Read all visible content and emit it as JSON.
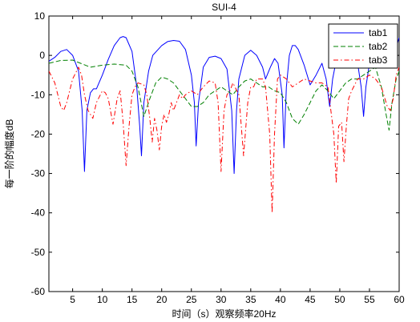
{
  "chart_data": {
    "type": "line",
    "title": "SUI-4",
    "xlabel": "时间（s）观察频率20Hz",
    "ylabel": "每一阶的幅度dB",
    "xlim": [
      1,
      60
    ],
    "ylim": [
      -60,
      10
    ],
    "xticks": [
      5,
      10,
      15,
      20,
      25,
      30,
      35,
      40,
      45,
      50,
      55,
      60
    ],
    "yticks": [
      10,
      0,
      -10,
      -20,
      -30,
      -40,
      -50,
      -60
    ],
    "grid": false,
    "legend_position": "top-right",
    "series": [
      {
        "name": "tab1",
        "color": "#0000ff",
        "style": "solid",
        "points": [
          [
            1,
            -1.5
          ],
          [
            2,
            -0.5
          ],
          [
            3,
            1
          ],
          [
            4,
            1.5
          ],
          [
            5,
            0
          ],
          [
            6,
            -4
          ],
          [
            6.6,
            -14
          ],
          [
            7,
            -29.5
          ],
          [
            7.4,
            -14
          ],
          [
            8,
            -9.5
          ],
          [
            8.5,
            -8.5
          ],
          [
            9,
            -8.5
          ],
          [
            10,
            -5
          ],
          [
            11,
            -1
          ],
          [
            12,
            2.5
          ],
          [
            13,
            4.5
          ],
          [
            13.5,
            4.8
          ],
          [
            14,
            4.5
          ],
          [
            15,
            1
          ],
          [
            15.8,
            -8
          ],
          [
            16.3,
            -18
          ],
          [
            16.6,
            -25.5
          ],
          [
            17,
            -12
          ],
          [
            17.8,
            -4
          ],
          [
            18.5,
            0
          ],
          [
            20,
            2.5
          ],
          [
            21,
            3.5
          ],
          [
            22,
            3.8
          ],
          [
            23,
            3.6
          ],
          [
            24,
            1.5
          ],
          [
            25,
            -5
          ],
          [
            25.5,
            -12
          ],
          [
            25.8,
            -23
          ],
          [
            26.2,
            -12
          ],
          [
            27,
            -3
          ],
          [
            28,
            -0.5
          ],
          [
            29,
            -0.2
          ],
          [
            30,
            -0.8
          ],
          [
            31,
            -3.5
          ],
          [
            31.8,
            -14
          ],
          [
            32.2,
            -30
          ],
          [
            32.6,
            -14
          ],
          [
            33,
            -6
          ],
          [
            34,
            0
          ],
          [
            35,
            1.3
          ],
          [
            36,
            0
          ],
          [
            37,
            -3
          ],
          [
            37.5,
            -6
          ],
          [
            38.3,
            -3
          ],
          [
            39,
            -0.8
          ],
          [
            39.6,
            -2
          ],
          [
            40.3,
            -10
          ],
          [
            40.6,
            -23.5
          ],
          [
            41,
            -8
          ],
          [
            41.5,
            0
          ],
          [
            42,
            2.5
          ],
          [
            42.5,
            2.5
          ],
          [
            43,
            1.5
          ],
          [
            44,
            -2.5
          ],
          [
            45,
            -7.5
          ],
          [
            46,
            -5
          ],
          [
            47,
            -2
          ],
          [
            47.7,
            -6
          ],
          [
            48.3,
            -13
          ],
          [
            48.8,
            -6
          ],
          [
            49.5,
            -0.5
          ],
          [
            50,
            0
          ],
          [
            51,
            0
          ],
          [
            52,
            -0.5
          ],
          [
            53,
            -2
          ],
          [
            53.6,
            -8
          ],
          [
            54,
            -15.5
          ],
          [
            54.4,
            -8
          ],
          [
            55,
            -2
          ],
          [
            56,
            0
          ],
          [
            57,
            0.5
          ],
          [
            58,
            0.3
          ],
          [
            58.8,
            -1
          ],
          [
            59.5,
            2
          ],
          [
            60,
            4.5
          ]
        ]
      },
      {
        "name": "tab2",
        "color": "#008000",
        "style": "dashed",
        "points": [
          [
            1,
            -2
          ],
          [
            3,
            -1.3
          ],
          [
            5,
            -1.2
          ],
          [
            6,
            -1.8
          ],
          [
            8,
            -3
          ],
          [
            10,
            -2.5
          ],
          [
            12,
            -2.2
          ],
          [
            14,
            -2.5
          ],
          [
            15,
            -4
          ],
          [
            16,
            -8
          ],
          [
            17,
            -15.5
          ],
          [
            18,
            -11
          ],
          [
            19,
            -7
          ],
          [
            20,
            -5.5
          ],
          [
            21,
            -6
          ],
          [
            22,
            -7
          ],
          [
            23,
            -9
          ],
          [
            24,
            -11
          ],
          [
            25,
            -13
          ],
          [
            26,
            -13
          ],
          [
            27,
            -12
          ],
          [
            28,
            -10
          ],
          [
            29,
            -9
          ],
          [
            30,
            -8
          ],
          [
            31,
            -9
          ],
          [
            32,
            -10
          ],
          [
            33,
            -8
          ],
          [
            34,
            -6.5
          ],
          [
            35,
            -6
          ],
          [
            36,
            -7
          ],
          [
            37,
            -8
          ],
          [
            38,
            -8
          ],
          [
            39,
            -9
          ],
          [
            40,
            -9.5
          ],
          [
            41,
            -12
          ],
          [
            42,
            -16
          ],
          [
            43,
            -17.5
          ],
          [
            44,
            -15
          ],
          [
            45,
            -12
          ],
          [
            46,
            -9
          ],
          [
            47,
            -7.5
          ],
          [
            48,
            -9
          ],
          [
            49,
            -11
          ],
          [
            50,
            -9
          ],
          [
            51,
            -7
          ],
          [
            52,
            -6
          ],
          [
            53,
            -6
          ],
          [
            54,
            -5
          ],
          [
            55,
            -4
          ],
          [
            56,
            -3
          ],
          [
            57,
            -8
          ],
          [
            57.8,
            -15
          ],
          [
            58.3,
            -19
          ],
          [
            58.8,
            -12
          ],
          [
            59.5,
            -6
          ],
          [
            60,
            -4
          ]
        ]
      },
      {
        "name": "tab3",
        "color": "#ff0000",
        "style": "dashdot",
        "points": [
          [
            1,
            -4
          ],
          [
            2,
            -7
          ],
          [
            3,
            -13
          ],
          [
            3.5,
            -14
          ],
          [
            4,
            -12
          ],
          [
            5,
            -6
          ],
          [
            6,
            -3
          ],
          [
            6.5,
            -5
          ],
          [
            7,
            -10
          ],
          [
            7.6,
            -14
          ],
          [
            8.4,
            -16
          ],
          [
            9,
            -12
          ],
          [
            10,
            -9
          ],
          [
            10.5,
            -9.5
          ],
          [
            11,
            -11
          ],
          [
            11.8,
            -17.5
          ],
          [
            12.5,
            -11
          ],
          [
            13,
            -9
          ],
          [
            13.5,
            -17
          ],
          [
            14,
            -28
          ],
          [
            14.5,
            -18
          ],
          [
            15,
            -10
          ],
          [
            15.5,
            -8
          ],
          [
            16,
            -7
          ],
          [
            17,
            -7.5
          ],
          [
            17.5,
            -10
          ],
          [
            18,
            -16
          ],
          [
            18.4,
            -22
          ],
          [
            18.8,
            -16
          ],
          [
            19.2,
            -19
          ],
          [
            19.6,
            -24
          ],
          [
            20,
            -18
          ],
          [
            20.4,
            -15
          ],
          [
            20.8,
            -17
          ],
          [
            21.2,
            -15
          ],
          [
            21.6,
            -12
          ],
          [
            22,
            -14
          ],
          [
            22.5,
            -12
          ],
          [
            23,
            -10
          ],
          [
            23.5,
            -11
          ],
          [
            24,
            -10
          ],
          [
            25,
            -9
          ],
          [
            26,
            -10
          ],
          [
            27,
            -8
          ],
          [
            28,
            -6.5
          ],
          [
            29,
            -7
          ],
          [
            29.5,
            -12
          ],
          [
            30,
            -29.5
          ],
          [
            30.5,
            -14
          ],
          [
            31,
            -10
          ],
          [
            31.5,
            -9
          ],
          [
            32,
            -7
          ],
          [
            33,
            -10
          ],
          [
            33.8,
            -25.5
          ],
          [
            34.5,
            -12
          ],
          [
            35,
            -8
          ],
          [
            35.5,
            -8
          ],
          [
            36,
            -6
          ],
          [
            37,
            -6
          ],
          [
            37.5,
            -8
          ],
          [
            38.2,
            -20
          ],
          [
            38.6,
            -40
          ],
          [
            39,
            -20
          ],
          [
            39.5,
            -6
          ],
          [
            40,
            -5
          ],
          [
            41,
            -6
          ],
          [
            42,
            -8
          ],
          [
            43,
            -7
          ],
          [
            44,
            -6
          ],
          [
            45,
            -6.5
          ],
          [
            46,
            -7
          ],
          [
            47,
            -7
          ],
          [
            48,
            -8
          ],
          [
            49,
            -20
          ],
          [
            49.4,
            -32.5
          ],
          [
            49.8,
            -18
          ],
          [
            50.3,
            -17
          ],
          [
            50.7,
            -27
          ],
          [
            51.1,
            -18
          ],
          [
            51.5,
            -11
          ],
          [
            52,
            -9
          ],
          [
            53,
            -6
          ],
          [
            54,
            -6
          ],
          [
            55,
            -5
          ],
          [
            56,
            -6
          ],
          [
            57,
            -8
          ],
          [
            58,
            -13
          ],
          [
            58.5,
            -14
          ],
          [
            59,
            -11
          ],
          [
            59.5,
            -5
          ],
          [
            60,
            -3
          ]
        ]
      }
    ]
  }
}
